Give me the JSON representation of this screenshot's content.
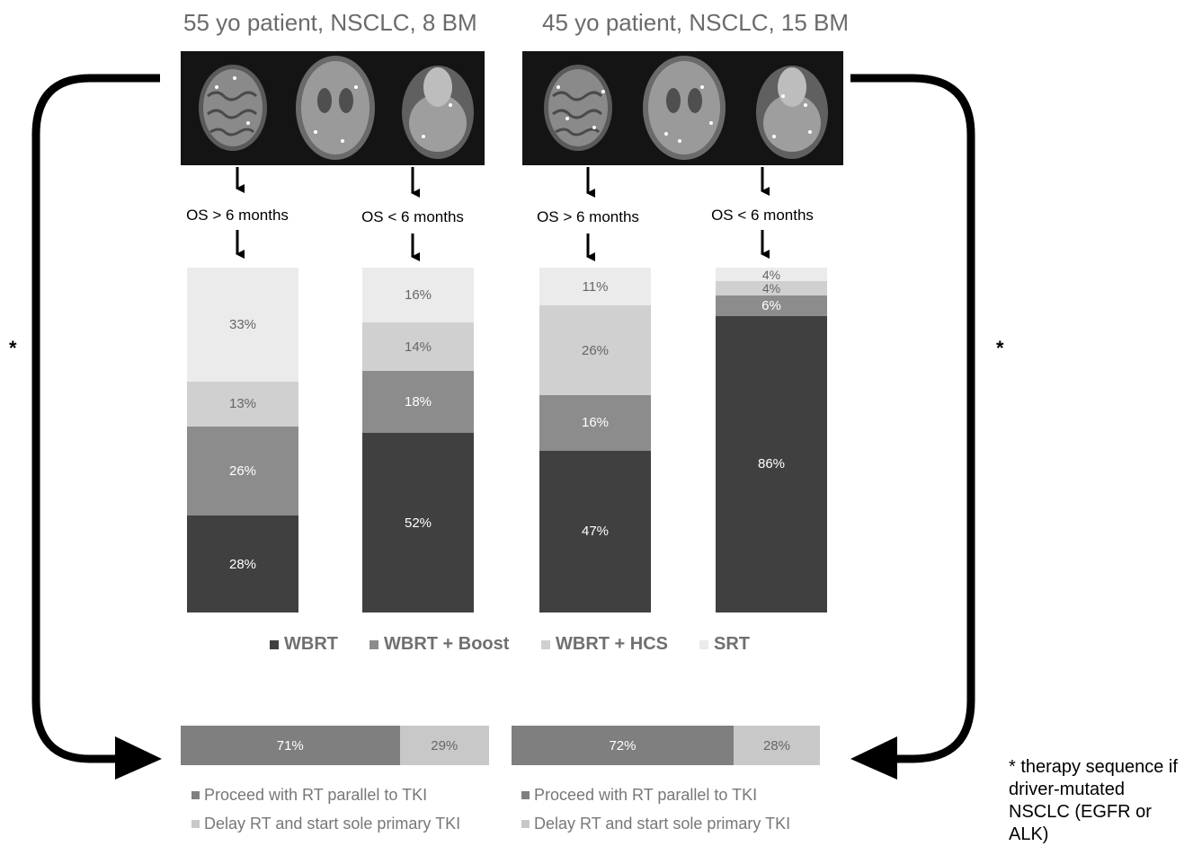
{
  "panels": [
    {
      "title": "55 yo patient, NSCLC, 8 BM"
    },
    {
      "title": "45 yo patient, NSCLC, 15 BM"
    }
  ],
  "colors": {
    "WBRT": "#404040",
    "WBRT + Boost": "#8c8c8c",
    "WBRT + HCS": "#d0d0d0",
    "SRT": "#ebebeb",
    "Proceed": "#7f7f7f",
    "Delay": "#c8c8c8"
  },
  "chart_data": [
    {
      "type": "bar",
      "stacked": true,
      "normalized_percent": true,
      "categories": [
        "OS > 6 months",
        "OS < 6 months",
        "OS > 6 months",
        "OS < 6 months"
      ],
      "series": [
        {
          "name": "WBRT",
          "values": [
            28,
            52,
            47,
            86
          ],
          "labels": [
            "28%",
            "52%",
            "47%",
            "86%"
          ]
        },
        {
          "name": "WBRT + Boost",
          "values": [
            26,
            18,
            16,
            6
          ],
          "labels": [
            "26%",
            "18%",
            "16%",
            "6%"
          ]
        },
        {
          "name": "WBRT + HCS",
          "values": [
            13,
            14,
            26,
            4
          ],
          "labels": [
            "13%",
            "14%",
            "26%",
            "4%"
          ]
        },
        {
          "name": "SRT",
          "values": [
            33,
            16,
            11,
            4
          ],
          "labels": [
            "33%",
            "16%",
            "11%",
            "4%"
          ]
        }
      ],
      "legend": "bottom",
      "grid": false
    },
    {
      "type": "bar",
      "orientation": "horizontal",
      "stacked": true,
      "categories": [
        "55 yo patient, NSCLC, 8 BM",
        "45 yo patient, NSCLC, 15 BM"
      ],
      "series": [
        {
          "name": "Proceed with RT parallel to TKI",
          "values": [
            71,
            72
          ],
          "labels": [
            "71%",
            "72%"
          ]
        },
        {
          "name": "Delay RT and start sole primary TKI",
          "values": [
            29,
            28
          ],
          "labels": [
            "29%",
            "28%"
          ]
        }
      ],
      "legend": "bottom",
      "grid": false
    }
  ],
  "stars": [
    "*",
    "*"
  ],
  "footnote": "* therapy sequence if driver-mutated NSCLC (EGFR or ALK)"
}
